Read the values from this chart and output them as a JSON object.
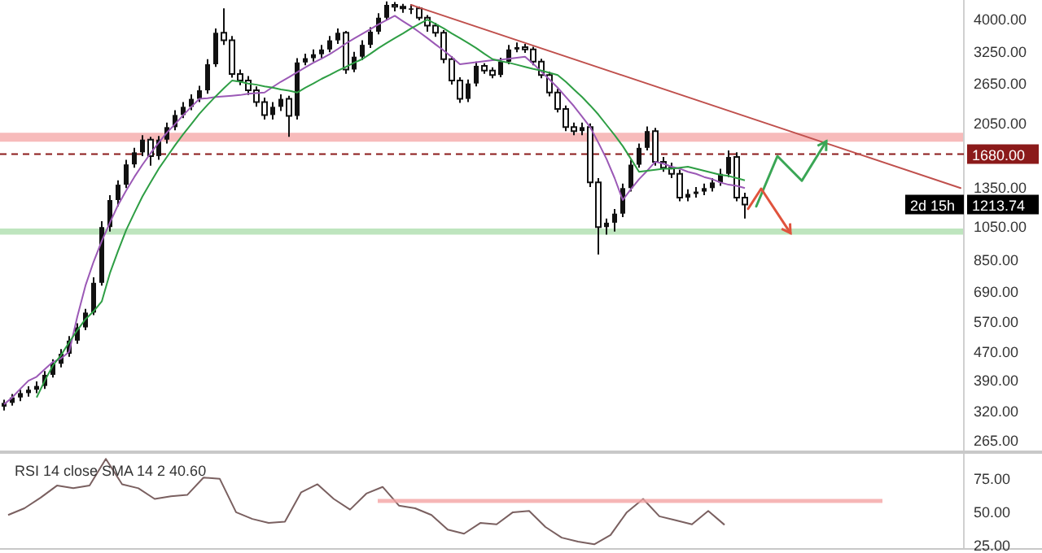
{
  "chart_data": [
    {
      "type": "candlestick",
      "ylim": [
        246,
        4540
      ],
      "log": true,
      "tick_labels": "y",
      "marker": "none",
      "categories": [
        null,
        null,
        null,
        null,
        null,
        null,
        null,
        null,
        null,
        null,
        null,
        null,
        null,
        null,
        null,
        null,
        null,
        null,
        null,
        null,
        null,
        null,
        null,
        null,
        null,
        null,
        null,
        null,
        null,
        null,
        null,
        null,
        null,
        null,
        null,
        null,
        null,
        null,
        null,
        null,
        null,
        null,
        null,
        null,
        null,
        null,
        null,
        null,
        null,
        null,
        null,
        null,
        null,
        null,
        null,
        null,
        null,
        null,
        null,
        null,
        null,
        null,
        null,
        null,
        null,
        null,
        null,
        null,
        null,
        null,
        null,
        null,
        null,
        null,
        null,
        null,
        null,
        null,
        null,
        null,
        null,
        null,
        null,
        null,
        null,
        null,
        null,
        null,
        null,
        null,
        null,
        null
      ],
      "yticks": [
        {
          "value": 265,
          "label": "265.00"
        },
        {
          "value": 320,
          "label": "320.00"
        },
        {
          "value": 390,
          "label": "390.00"
        },
        {
          "value": 470,
          "label": "470.00"
        },
        {
          "value": 570,
          "label": "570.00"
        },
        {
          "value": 690,
          "label": "690.00"
        },
        {
          "value": 850,
          "label": "850.00"
        },
        {
          "value": 1050,
          "label": "1050.00"
        },
        {
          "value": 1350,
          "label": "1350.00"
        },
        {
          "value": 2050,
          "label": "2050.00"
        },
        {
          "value": 2650,
          "label": "2650.00"
        },
        {
          "value": 3250,
          "label": "3250.00"
        },
        {
          "value": 4000,
          "label": "4000.00"
        }
      ],
      "series": [
        {
          "color": "#111111",
          "ohlc": [
            [
              330,
              345,
              322,
              338
            ],
            [
              338,
              358,
              332,
              350
            ],
            [
              350,
              368,
              342,
              360
            ],
            [
              360,
              376,
              352,
              368
            ],
            [
              368,
              388,
              360,
              377
            ],
            [
              377,
              415,
              370,
              405
            ],
            [
              405,
              448,
              398,
              435
            ],
            [
              435,
              478,
              425,
              464
            ],
            [
              464,
              520,
              455,
              505
            ],
            [
              505,
              565,
              495,
              550
            ],
            [
              550,
              620,
              540,
              605
            ],
            [
              605,
              760,
              595,
              733
            ],
            [
              733,
              1090,
              720,
              1050
            ],
            [
              1050,
              1290,
              1020,
              1250
            ],
            [
              1250,
              1420,
              1200,
              1380
            ],
            [
              1380,
              1620,
              1350,
              1573
            ],
            [
              1573,
              1750,
              1540,
              1700
            ],
            [
              1700,
              1900,
              1660,
              1845
            ],
            [
              1845,
              1880,
              1560,
              1660
            ],
            [
              1660,
              1890,
              1620,
              1845
            ],
            [
              1845,
              2060,
              1800,
              2000
            ],
            [
              2000,
              2230,
              1960,
              2163
            ],
            [
              2163,
              2350,
              2120,
              2280
            ],
            [
              2280,
              2470,
              2230,
              2400
            ],
            [
              2400,
              2610,
              2350,
              2536
            ],
            [
              2536,
              3100,
              2480,
              3000
            ],
            [
              3000,
              3780,
              2950,
              3675
            ],
            [
              3675,
              4300,
              3400,
              3500
            ],
            [
              3500,
              3600,
              2750,
              2819
            ],
            [
              2819,
              2900,
              2620,
              2700
            ],
            [
              2700,
              2780,
              2460,
              2536
            ],
            [
              2536,
              2600,
              2280,
              2350
            ],
            [
              2350,
              2420,
              2100,
              2163
            ],
            [
              2163,
              2350,
              2100,
              2280
            ],
            [
              2280,
              2470,
              2220,
              2400
            ],
            [
              2400,
              2450,
              1880,
              2150
            ],
            [
              2150,
              3120,
              2100,
              3035
            ],
            [
              3035,
              3210,
              2980,
              3120
            ],
            [
              3120,
              3300,
              3050,
              3200
            ],
            [
              3200,
              3400,
              3120,
              3300
            ],
            [
              3300,
              3600,
              3240,
              3500
            ],
            [
              3500,
              3780,
              3420,
              3675
            ],
            [
              3675,
              3720,
              2820,
              2900
            ],
            [
              2900,
              3250,
              2850,
              3150
            ],
            [
              3150,
              3500,
              3080,
              3400
            ],
            [
              3400,
              3810,
              3330,
              3700
            ],
            [
              3700,
              4170,
              3640,
              4050
            ],
            [
              4050,
              4500,
              3980,
              4400
            ],
            [
              4400,
              4480,
              4220,
              4350
            ],
            [
              4350,
              4430,
              4180,
              4300
            ],
            [
              4300,
              4420,
              4150,
              4300
            ],
            [
              4300,
              4350,
              3980,
              4050
            ],
            [
              4050,
              4120,
              3700,
              3850
            ],
            [
              3850,
              3920,
              3580,
              3675
            ],
            [
              3675,
              3740,
              3020,
              3100
            ],
            [
              3100,
              3160,
              2630,
              2700
            ],
            [
              2700,
              2760,
              2340,
              2400
            ],
            [
              2400,
              2720,
              2350,
              2650
            ],
            [
              2650,
              3050,
              2600,
              2970
            ],
            [
              2970,
              3020,
              2820,
              2880
            ],
            [
              2880,
              2940,
              2740,
              2800
            ],
            [
              2800,
              3130,
              2760,
              3050
            ],
            [
              3050,
              3400,
              3000,
              3300
            ],
            [
              3300,
              3450,
              3240,
              3350
            ],
            [
              3350,
              3420,
              3230,
              3300
            ],
            [
              3300,
              3360,
              2980,
              3050
            ],
            [
              3050,
              3110,
              2740,
              2800
            ],
            [
              2800,
              2860,
              2440,
              2500
            ],
            [
              2500,
              2560,
              2200,
              2250
            ],
            [
              2250,
              2300,
              1950,
              2000
            ],
            [
              2000,
              2060,
              1900,
              1950
            ],
            [
              1950,
              2060,
              1900,
              2000
            ],
            [
              2000,
              2050,
              1360,
              1400
            ],
            [
              1400,
              1440,
              880,
              1050
            ],
            [
              1050,
              1110,
              1000,
              1080
            ],
            [
              1080,
              1180,
              1020,
              1145
            ],
            [
              1145,
              1390,
              1120,
              1350
            ],
            [
              1350,
              1620,
              1320,
              1570
            ],
            [
              1570,
              1800,
              1540,
              1750
            ],
            [
              1750,
              2010,
              1720,
              1950
            ],
            [
              1950,
              1990,
              1560,
              1600
            ],
            [
              1600,
              1650,
              1500,
              1540
            ],
            [
              1540,
              1590,
              1440,
              1480
            ],
            [
              1480,
              1520,
              1240,
              1270
            ],
            [
              1270,
              1340,
              1240,
              1300
            ],
            [
              1300,
              1360,
              1270,
              1320
            ],
            [
              1320,
              1390,
              1290,
              1350
            ],
            [
              1350,
              1440,
              1320,
              1400
            ],
            [
              1400,
              1530,
              1370,
              1480
            ],
            [
              1480,
              1720,
              1450,
              1650
            ],
            [
              1650,
              1700,
              1240,
              1270
            ],
            [
              1270,
              1310,
              1110,
              1214
            ]
          ]
        },
        {
          "type": "line",
          "color": "#9b59b6",
          "values": [
            335,
            350,
            370,
            390,
            400,
            420,
            440,
            450,
            470,
            590,
            720,
            840,
            960,
            1080,
            1210,
            1330,
            1450,
            1570,
            1690,
            1810,
            1930,
            2040,
            2160,
            2280,
            2400,
            2410,
            2430,
            2440,
            2450,
            2460,
            2480,
            2490,
            2500,
            2590,
            2680,
            2760,
            2850,
            2940,
            3030,
            3110,
            3200,
            3310,
            3430,
            3540,
            3650,
            3760,
            3880,
            3990,
            4100,
            3960,
            3830,
            3690,
            3550,
            3410,
            3280,
            3140,
            3000,
            3020,
            3040,
            3060,
            3080,
            3090,
            3110,
            3130,
            3150,
            3010,
            2860,
            2720,
            2580,
            2430,
            2290,
            2140,
            2000,
            1810,
            1630,
            1440,
            1250,
            1340,
            1430,
            1510,
            1600,
            1580,
            1550,
            1530,
            1500,
            1480,
            1450,
            1430,
            1400,
            1380,
            1370,
            1350
          ]
        },
        {
          "type": "line",
          "color": "#2e9e44",
          "values": [
            null,
            null,
            null,
            null,
            350,
            390,
            430,
            460,
            500,
            540,
            580,
            610,
            650,
            780,
            900,
            1030,
            1150,
            1280,
            1400,
            1530,
            1650,
            1780,
            1910,
            2040,
            2180,
            2310,
            2440,
            2570,
            2700,
            2680,
            2650,
            2630,
            2600,
            2580,
            2550,
            2530,
            2500,
            2580,
            2650,
            2730,
            2800,
            2880,
            2950,
            3030,
            3100,
            3210,
            3330,
            3440,
            3550,
            3660,
            3780,
            3890,
            4000,
            3890,
            3780,
            3660,
            3550,
            3440,
            3330,
            3210,
            3100,
            3060,
            3030,
            2990,
            2950,
            2910,
            2880,
            2840,
            2800,
            2680,
            2550,
            2430,
            2300,
            2170,
            2030,
            1900,
            1770,
            1630,
            1500,
            1510,
            1520,
            1530,
            1530,
            1540,
            1550,
            1530,
            1510,
            1490,
            1470,
            1460,
            1440,
            1420
          ]
        }
      ],
      "ref_lines": [
        {
          "axis": "y",
          "value": 1680,
          "label": "1680.00",
          "color": "#8b1a1a",
          "line_style": "dashed"
        }
      ],
      "bands": [
        {
          "axis": "y",
          "from": 1820,
          "to": 1930,
          "color": "#f4a4a4"
        },
        {
          "axis": "y",
          "from": 1000,
          "to": 1040,
          "color": "#a8dca8"
        }
      ],
      "annotations": [
        "1213.74",
        "2d 15h"
      ]
    },
    {
      "type": "line",
      "title": "RSI 14 close SMA 14 2 40.60",
      "ylim": [
        22,
        95
      ],
      "tick_labels": "y",
      "marker": "none",
      "categories": [
        null,
        null,
        null,
        null,
        null,
        null,
        null,
        null,
        null,
        null,
        null,
        null,
        null,
        null,
        null,
        null,
        null,
        null,
        null,
        null,
        null,
        null,
        null,
        null,
        null,
        null,
        null,
        null,
        null,
        null,
        null,
        null,
        null,
        null,
        null,
        null,
        null,
        null,
        null,
        null,
        null,
        null,
        null,
        null,
        null
      ],
      "yticks": [
        {
          "value": 25,
          "label": "25.00"
        },
        {
          "value": 50,
          "label": "50.00"
        },
        {
          "value": 75,
          "label": "75.00"
        }
      ],
      "series": [
        {
          "color": "#7a6060",
          "values": [
            48,
            53,
            61,
            70,
            68,
            70,
            90,
            71,
            68,
            60,
            62,
            63,
            76,
            75,
            50,
            45,
            42,
            43,
            65,
            71,
            60,
            52,
            64,
            69,
            55,
            53,
            48,
            37,
            34,
            42,
            41,
            50,
            51,
            39,
            31,
            28,
            26,
            33,
            50,
            60,
            47,
            44,
            41,
            51,
            40.6
          ]
        }
      ]
    }
  ]
}
